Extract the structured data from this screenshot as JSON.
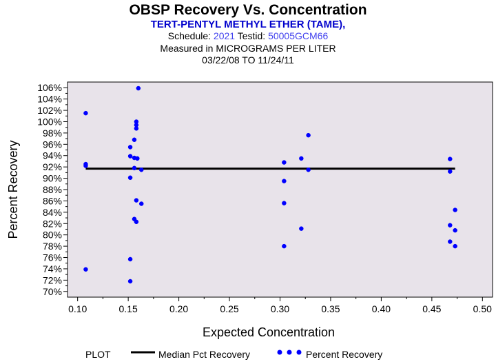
{
  "chart_data": {
    "type": "scatter",
    "title": "OBSP Recovery Vs. Concentration",
    "subtitle": "TERT-PENTYL METHYL ETHER (TAME),",
    "schedule_label": "Schedule:",
    "schedule_value": "2021",
    "testid_label": "Testid:",
    "testid_value": "50005GCM66",
    "measured_label": "Measured in",
    "measured_units": "MICROGRAMS PER LITER",
    "date_range": "03/22/08 TO 11/24/11",
    "xlabel": "Expected Concentration",
    "ylabel": "Percent Recovery",
    "xlim": [
      0.09,
      0.51
    ],
    "ylim": [
      69,
      107
    ],
    "x_ticks": [
      0.1,
      0.15,
      0.2,
      0.25,
      0.3,
      0.35,
      0.4,
      0.45,
      0.5
    ],
    "x_tick_labels": [
      "0.10",
      "0.15",
      "0.20",
      "0.25",
      "0.30",
      "0.35",
      "0.40",
      "0.45",
      "0.50"
    ],
    "y_ticks": [
      70,
      72,
      74,
      76,
      78,
      80,
      82,
      84,
      86,
      88,
      90,
      92,
      94,
      96,
      98,
      100,
      102,
      104,
      106
    ],
    "y_tick_labels": [
      "70%",
      "72%",
      "74%",
      "76%",
      "78%",
      "80%",
      "82%",
      "84%",
      "86%",
      "88%",
      "90%",
      "92%",
      "94%",
      "96%",
      "98%",
      "100%",
      "102%",
      "104%",
      "106%"
    ],
    "median": {
      "name": "Median Pct Recovery",
      "value": 91.7,
      "x_start": 0.108,
      "x_end": 0.473,
      "color": "#000000"
    },
    "series": [
      {
        "name": "Percent Recovery",
        "color": "#0000ff",
        "points": [
          [
            0.108,
            101.5
          ],
          [
            0.108,
            92.5
          ],
          [
            0.108,
            92.2
          ],
          [
            0.108,
            73.9
          ],
          [
            0.16,
            105.9
          ],
          [
            0.158,
            100.0
          ],
          [
            0.158,
            99.4
          ],
          [
            0.158,
            98.8
          ],
          [
            0.156,
            96.8
          ],
          [
            0.152,
            95.5
          ],
          [
            0.152,
            93.9
          ],
          [
            0.156,
            93.6
          ],
          [
            0.159,
            93.5
          ],
          [
            0.156,
            91.8
          ],
          [
            0.163,
            91.5
          ],
          [
            0.152,
            90.1
          ],
          [
            0.158,
            86.1
          ],
          [
            0.163,
            85.5
          ],
          [
            0.156,
            82.8
          ],
          [
            0.158,
            82.3
          ],
          [
            0.152,
            75.7
          ],
          [
            0.152,
            71.8
          ],
          [
            0.304,
            92.8
          ],
          [
            0.304,
            89.5
          ],
          [
            0.304,
            85.6
          ],
          [
            0.304,
            78.0
          ],
          [
            0.321,
            93.5
          ],
          [
            0.321,
            81.1
          ],
          [
            0.328,
            97.6
          ],
          [
            0.328,
            91.5
          ],
          [
            0.468,
            93.4
          ],
          [
            0.468,
            91.2
          ],
          [
            0.468,
            81.7
          ],
          [
            0.468,
            78.8
          ],
          [
            0.473,
            84.4
          ],
          [
            0.473,
            80.8
          ],
          [
            0.473,
            78.0
          ]
        ]
      }
    ],
    "legend": {
      "plot_label": "PLOT",
      "median_label": "Median Pct Recovery",
      "points_label": "Percent Recovery"
    }
  }
}
